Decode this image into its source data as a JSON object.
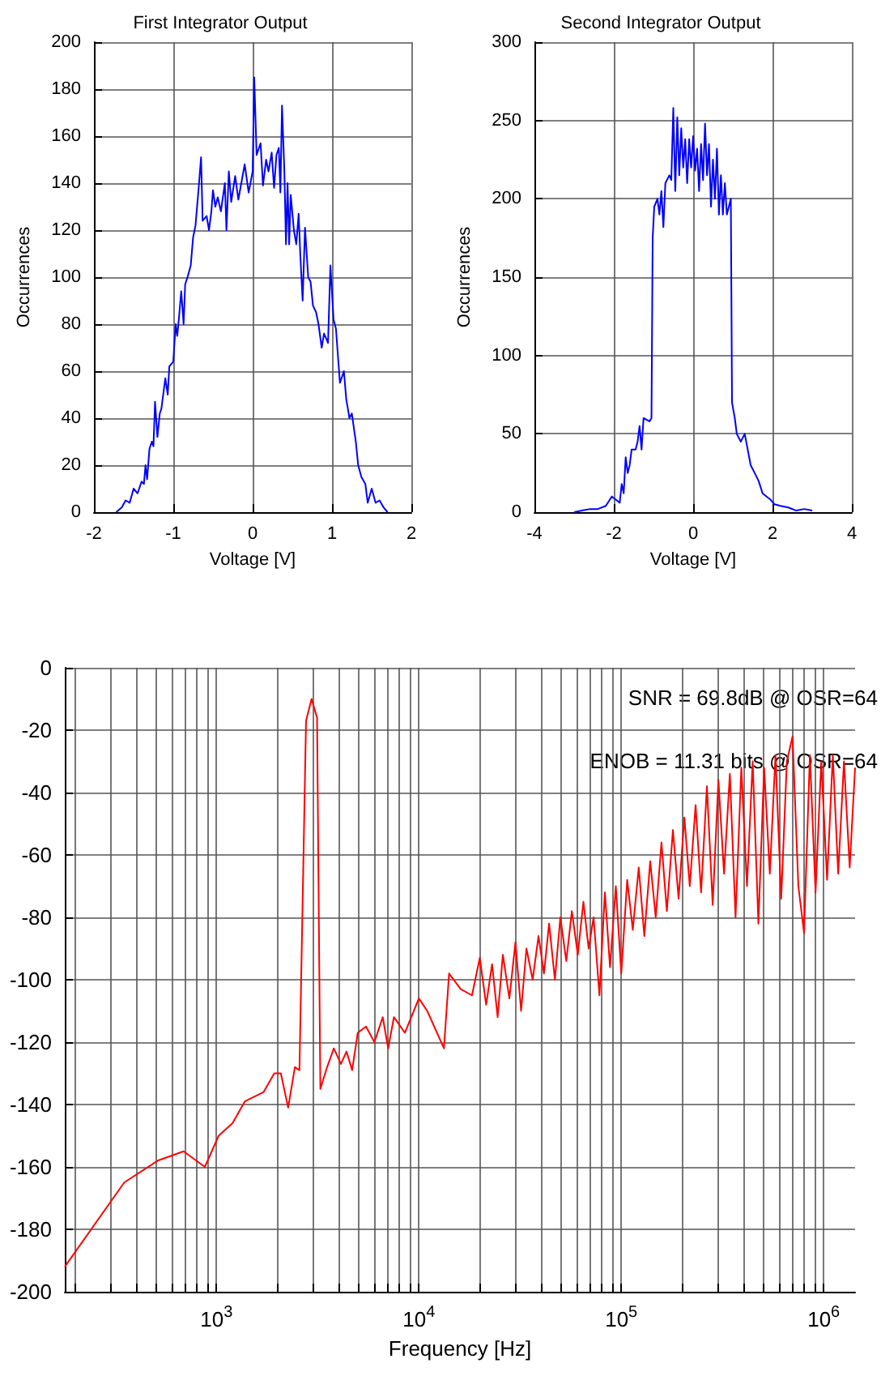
{
  "chart_data": [
    {
      "type": "line",
      "title": "First Integrator Output",
      "xlabel": "Voltage [V]",
      "ylabel": "Occurrences",
      "xlim": [
        -2,
        2
      ],
      "xticks": [
        -2,
        -1,
        0,
        1,
        2
      ],
      "ylim": [
        0,
        200
      ],
      "yticks": [
        0,
        20,
        40,
        60,
        80,
        100,
        120,
        140,
        160,
        180,
        200
      ],
      "grid": true,
      "x": [
        -1.72,
        -1.65,
        -1.6,
        -1.55,
        -1.5,
        -1.45,
        -1.4,
        -1.37,
        -1.35,
        -1.33,
        -1.3,
        -1.27,
        -1.25,
        -1.23,
        -1.2,
        -1.17,
        -1.15,
        -1.1,
        -1.07,
        -1.05,
        -1.0,
        -0.97,
        -0.95,
        -0.93,
        -0.9,
        -0.87,
        -0.85,
        -0.82,
        -0.78,
        -0.75,
        -0.72,
        -0.68,
        -0.65,
        -0.63,
        -0.58,
        -0.55,
        -0.52,
        -0.5,
        -0.47,
        -0.44,
        -0.4,
        -0.35,
        -0.33,
        -0.3,
        -0.27,
        -0.22,
        -0.18,
        -0.1,
        -0.05,
        0,
        0.02,
        0.05,
        0.1,
        0.13,
        0.17,
        0.2,
        0.24,
        0.27,
        0.3,
        0.33,
        0.35,
        0.37,
        0.4,
        0.42,
        0.44,
        0.46,
        0.48,
        0.52,
        0.55,
        0.58,
        0.6,
        0.63,
        0.66,
        0.7,
        0.73,
        0.76,
        0.8,
        0.83,
        0.87,
        0.9,
        0.95,
        0.98,
        1.02,
        1.05,
        1.1,
        1.15,
        1.18,
        1.22,
        1.25,
        1.3,
        1.33,
        1.37,
        1.42,
        1.45,
        1.5,
        1.55,
        1.6,
        1.65,
        1.7
      ],
      "series": [
        {
          "color": "#0000ff",
          "values": [
            0,
            2,
            5,
            4,
            10,
            8,
            13,
            12,
            20,
            14,
            27,
            30,
            28,
            47,
            32,
            42,
            44,
            57,
            50,
            62,
            64,
            80,
            75,
            82,
            94,
            80,
            97,
            100,
            105,
            117,
            122,
            138,
            151,
            124,
            126,
            120,
            128,
            137,
            130,
            134,
            128,
            140,
            120,
            145,
            132,
            143,
            133,
            148,
            136,
            145,
            185,
            152,
            157,
            139,
            150,
            145,
            153,
            138,
            152,
            155,
            136,
            173,
            145,
            114,
            140,
            114,
            135,
            120,
            114,
            127,
            110,
            90,
            121,
            100,
            98,
            88,
            85,
            80,
            70,
            76,
            72,
            105,
            82,
            78,
            55,
            60,
            48,
            40,
            42,
            30,
            20,
            15,
            12,
            4,
            10,
            4,
            5,
            2,
            0
          ]
        }
      ]
    },
    {
      "type": "line",
      "title": "Second Integrator Output",
      "xlabel": "Voltage [V]",
      "ylabel": "Occurrences",
      "xlim": [
        -4,
        4
      ],
      "xticks": [
        -4,
        -2,
        0,
        2,
        4
      ],
      "ylim": [
        0,
        300
      ],
      "yticks": [
        0,
        50,
        100,
        150,
        200,
        250,
        300
      ],
      "grid": true,
      "x": [
        -3,
        -2.8,
        -2.6,
        -2.4,
        -2.2,
        -2.05,
        -1.95,
        -1.85,
        -1.8,
        -1.75,
        -1.7,
        -1.65,
        -1.6,
        -1.55,
        -1.45,
        -1.4,
        -1.35,
        -1.3,
        -1.25,
        -1.1,
        -1.05,
        -1.02,
        -0.98,
        -0.9,
        -0.85,
        -0.8,
        -0.75,
        -0.7,
        -0.6,
        -0.55,
        -0.5,
        -0.45,
        -0.4,
        -0.35,
        -0.3,
        -0.25,
        -0.2,
        -0.15,
        -0.1,
        -0.05,
        0,
        0.05,
        0.1,
        0.15,
        0.2,
        0.25,
        0.3,
        0.35,
        0.4,
        0.45,
        0.5,
        0.55,
        0.6,
        0.65,
        0.7,
        0.75,
        0.8,
        0.85,
        0.95,
        0.98,
        1.05,
        1.1,
        1.2,
        1.3,
        1.45,
        1.55,
        1.65,
        1.75,
        1.85,
        1.95,
        2.05,
        2.2,
        2.4,
        2.6,
        2.8,
        3
      ],
      "series": [
        {
          "color": "#0000ff",
          "values": [
            0,
            1,
            2,
            2,
            4,
            10,
            8,
            6,
            18,
            12,
            35,
            25,
            30,
            40,
            40,
            45,
            55,
            40,
            60,
            58,
            60,
            175,
            195,
            200,
            190,
            205,
            182,
            210,
            215,
            212,
            258,
            205,
            252,
            215,
            245,
            220,
            238,
            210,
            238,
            220,
            240,
            218,
            232,
            205,
            235,
            212,
            248,
            215,
            235,
            195,
            225,
            200,
            232,
            190,
            215,
            190,
            210,
            190,
            200,
            70,
            60,
            50,
            45,
            50,
            30,
            25,
            20,
            12,
            10,
            8,
            5,
            4,
            3,
            1,
            2,
            1
          ]
        }
      ]
    },
    {
      "type": "line",
      "xlabel": "Frequency [Hz]",
      "log": "x",
      "xlim": [
        178,
        1430000
      ],
      "ylim": [
        -200,
        0
      ],
      "yticks": [
        -200,
        -180,
        -160,
        -140,
        -120,
        -100,
        -80,
        -60,
        -40,
        -20,
        0
      ],
      "grid": true,
      "xticks": [
        {
          "value": 200,
          "label": null
        },
        {
          "value": 300,
          "label": null
        },
        {
          "value": 400,
          "label": null
        },
        {
          "value": 500,
          "label": null
        },
        {
          "value": 600,
          "label": null
        },
        {
          "value": 700,
          "label": null
        },
        {
          "value": 800,
          "label": null
        },
        {
          "value": 900,
          "label": null
        },
        {
          "value": 1000,
          "label": "10$^{3}$"
        },
        {
          "value": 2000,
          "label": null
        },
        {
          "value": 3000,
          "label": null
        },
        {
          "value": 4000,
          "label": null
        },
        {
          "value": 5000,
          "label": null
        },
        {
          "value": 6000,
          "label": null
        },
        {
          "value": 7000,
          "label": null
        },
        {
          "value": 8000,
          "label": null
        },
        {
          "value": 9000,
          "label": null
        },
        {
          "value": 10000,
          "label": "10$^{4}$"
        },
        {
          "value": 20000,
          "label": null
        },
        {
          "value": 30000,
          "label": null
        },
        {
          "value": 40000,
          "label": null
        },
        {
          "value": 50000,
          "label": null
        },
        {
          "value": 60000,
          "label": null
        },
        {
          "value": 70000,
          "label": null
        },
        {
          "value": 80000,
          "label": null
        },
        {
          "value": 90000,
          "label": null
        },
        {
          "value": 100000,
          "label": "10$^{5}$"
        },
        {
          "value": 200000,
          "label": null
        },
        {
          "value": 300000,
          "label": null
        },
        {
          "value": 400000,
          "label": null
        },
        {
          "value": 500000,
          "label": null
        },
        {
          "value": 600000,
          "label": null
        },
        {
          "value": 700000,
          "label": null
        },
        {
          "value": 800000,
          "label": null
        },
        {
          "value": 900000,
          "label": null
        },
        {
          "value": 1000000,
          "label": "10$^{6}$"
        }
      ],
      "annotations": [
        "SNR = 69.8dB @ OSR=64",
        "ENOB = 11.31 bits @ OSR=64"
      ],
      "x": [
        178,
        350,
        512,
        688,
        876,
        1025,
        1200,
        1380,
        1710,
        1930,
        2080,
        2260,
        2440,
        2570,
        2770,
        2950,
        3140,
        3260,
        3520,
        3800,
        4120,
        4390,
        4680,
        4990,
        5480,
        6030,
        6630,
        7050,
        7530,
        8530,
        10000,
        11000,
        13300,
        14100,
        16100,
        18300,
        20000,
        21500,
        23000,
        24500,
        26000,
        28000,
        30000,
        32000,
        34000,
        36500,
        39000,
        41500,
        44000,
        47000,
        50000,
        53500,
        57000,
        61000,
        65000,
        69000,
        73000,
        78000,
        83000,
        88000,
        94000,
        100000,
        107000,
        114000,
        122000,
        130000,
        139000,
        148000,
        158000,
        168000,
        180000,
        192000,
        205000,
        218000,
        233000,
        248000,
        265000,
        283000,
        302000,
        322000,
        344000,
        367000,
        392000,
        418000,
        446000,
        476000,
        508000,
        542000,
        578000,
        617000,
        658000,
        702000,
        750000,
        800000,
        855000,
        912000,
        973000,
        1040000,
        1110000,
        1180000,
        1260000,
        1345000,
        1430000
      ],
      "series": [
        {
          "color": "#ff0000",
          "values": [
            -192,
            -165,
            -158,
            -155,
            -160,
            -150,
            -146,
            -139,
            -136,
            -130,
            -130,
            -141,
            -128,
            -129,
            -17,
            -10,
            -16,
            -135,
            -128,
            -122,
            -127,
            -123,
            -129,
            -117,
            -115,
            -120,
            -112,
            -122,
            -112,
            -117,
            -106,
            -110,
            -122,
            -98,
            -103,
            -105,
            -93,
            -108,
            -95,
            -112,
            -92,
            -106,
            -88,
            -110,
            -90,
            -100,
            -86,
            -98,
            -82,
            -100,
            -80,
            -94,
            -78,
            -92,
            -75,
            -90,
            -80,
            -105,
            -72,
            -96,
            -70,
            -98,
            -68,
            -84,
            -64,
            -86,
            -62,
            -80,
            -56,
            -78,
            -52,
            -74,
            -48,
            -70,
            -44,
            -72,
            -38,
            -76,
            -36,
            -66,
            -34,
            -80,
            -32,
            -70,
            -30,
            -82,
            -32,
            -66,
            -28,
            -74,
            -30,
            -22,
            -70,
            -85,
            -28,
            -72,
            -30,
            -68,
            -28,
            -66,
            -30,
            -64,
            -32
          ]
        }
      ]
    }
  ]
}
